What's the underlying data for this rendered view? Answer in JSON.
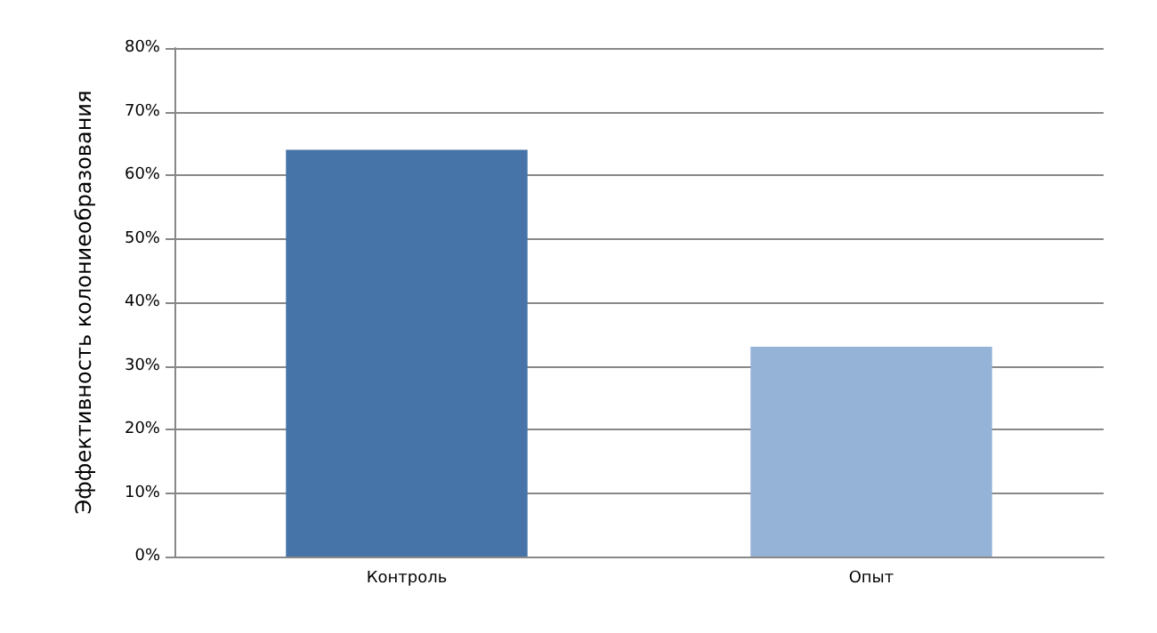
{
  "chart_data": {
    "type": "bar",
    "ylabel": "Эффективность колониеобразования",
    "categories": [
      "Контроль",
      "Опыт"
    ],
    "values": [
      64,
      33
    ],
    "colors": [
      "#4674a8",
      "#95b3d7"
    ],
    "ylim": [
      0,
      80
    ],
    "yticks": [
      {
        "value": 0,
        "label": "0%"
      },
      {
        "value": 10,
        "label": "10%"
      },
      {
        "value": 20,
        "label": "20%"
      },
      {
        "value": 30,
        "label": "30%"
      },
      {
        "value": 40,
        "label": "40%"
      },
      {
        "value": 50,
        "label": "50%"
      },
      {
        "value": 60,
        "label": "60%"
      },
      {
        "value": 70,
        "label": "70%"
      },
      {
        "value": 80,
        "label": "80%"
      }
    ],
    "grid": "y"
  }
}
